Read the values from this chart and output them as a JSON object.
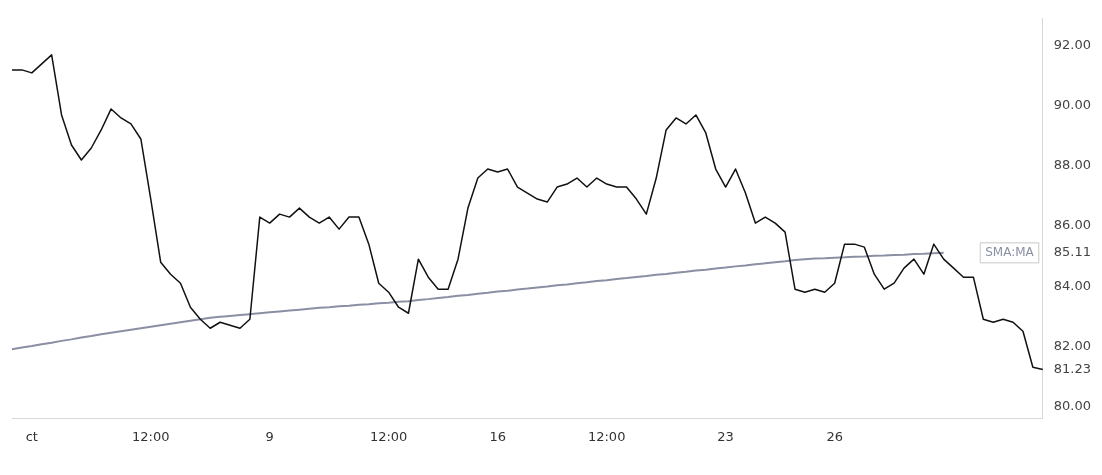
{
  "chart_data": {
    "type": "line",
    "ylim": [
      79.6,
      92.9
    ],
    "categories": [
      null,
      null,
      "ct",
      null,
      null,
      null,
      null,
      null,
      null,
      null,
      null,
      null,
      null,
      null,
      "12:00",
      null,
      null,
      null,
      null,
      null,
      null,
      null,
      null,
      null,
      null,
      null,
      "9",
      null,
      null,
      null,
      null,
      null,
      null,
      null,
      null,
      null,
      null,
      null,
      "12:00",
      null,
      null,
      null,
      null,
      null,
      null,
      null,
      null,
      null,
      null,
      "16",
      null,
      null,
      null,
      null,
      null,
      null,
      null,
      null,
      null,
      null,
      "12:00",
      null,
      null,
      null,
      null,
      null,
      null,
      null,
      null,
      null,
      null,
      null,
      "23",
      null,
      null,
      null,
      null,
      null,
      null,
      null,
      null,
      null,
      null,
      "26",
      null,
      null,
      null,
      null,
      null,
      null,
      null,
      null,
      null,
      null,
      null,
      null,
      null,
      null,
      null,
      null,
      null,
      null,
      null,
      null,
      null
    ],
    "yticks": [
      {
        "value": 80,
        "label": "80.00"
      },
      {
        "value": 81.23,
        "label": "81.23"
      },
      {
        "value": 82,
        "label": "82.00"
      },
      {
        "value": 84,
        "label": "84.00"
      },
      {
        "value": 85.11,
        "label": "85.11"
      },
      {
        "value": 86,
        "label": "86.00"
      },
      {
        "value": 88,
        "label": "88.00"
      },
      {
        "value": 90,
        "label": "90.00"
      },
      {
        "value": 92,
        "label": "92.00"
      }
    ],
    "grid": false,
    "legend": false,
    "marker": "none",
    "line_style": "solid",
    "series": [
      {
        "color": "#111111",
        "values": [
          91.2,
          91.2,
          91.1,
          91.4,
          91.7,
          89.7,
          88.7,
          88.2,
          88.6,
          89.2,
          89.9,
          89.6,
          89.4,
          88.9,
          86.9,
          84.8,
          84.4,
          84.1,
          83.3,
          82.9,
          82.6,
          82.8,
          82.7,
          82.6,
          82.9,
          86.3,
          86.1,
          86.4,
          86.3,
          86.6,
          86.3,
          86.1,
          86.3,
          85.9,
          86.3,
          86.3,
          85.4,
          84.1,
          83.8,
          83.3,
          83.1,
          84.9,
          84.3,
          83.9,
          83.9,
          84.9,
          86.6,
          87.6,
          87.9,
          87.8,
          87.9,
          87.3,
          87.1,
          86.9,
          86.8,
          87.3,
          87.4,
          87.6,
          87.3,
          87.6,
          87.4,
          87.3,
          87.3,
          86.9,
          86.4,
          87.6,
          89.2,
          89.6,
          89.4,
          89.7,
          89.1,
          87.9,
          87.3,
          87.9,
          87.1,
          86.1,
          86.3,
          86.1,
          85.8,
          83.9,
          83.8,
          83.9,
          83.8,
          84.1,
          85.4,
          85.4,
          85.3,
          84.4,
          83.9,
          84.1,
          84.6,
          84.9,
          84.4,
          85.4,
          84.9,
          84.6,
          84.3,
          84.3,
          82.9,
          82.8,
          82.9,
          82.8,
          82.5,
          81.3,
          81.23
        ]
      },
      {
        "name": "SMA:MA",
        "color": "#8a8fa3",
        "values": [
          81.9,
          81.96,
          82.01,
          82.07,
          82.12,
          82.18,
          82.23,
          82.29,
          82.34,
          82.4,
          82.45,
          82.5,
          82.55,
          82.6,
          82.65,
          82.7,
          82.75,
          82.8,
          82.85,
          82.9,
          82.95,
          82.98,
          83.01,
          83.04,
          83.07,
          83.1,
          83.13,
          83.16,
          83.19,
          83.22,
          83.25,
          83.28,
          83.3,
          83.33,
          83.35,
          83.38,
          83.4,
          83.43,
          83.45,
          83.48,
          83.5,
          83.54,
          83.57,
          83.61,
          83.64,
          83.68,
          83.71,
          83.75,
          83.78,
          83.82,
          83.85,
          83.89,
          83.92,
          83.96,
          83.99,
          84.03,
          84.06,
          84.1,
          84.13,
          84.17,
          84.2,
          84.24,
          84.27,
          84.31,
          84.34,
          84.38,
          84.41,
          84.45,
          84.48,
          84.52,
          84.55,
          84.59,
          84.62,
          84.66,
          84.69,
          84.73,
          84.76,
          84.8,
          84.83,
          84.87,
          84.9,
          84.92,
          84.93,
          84.95,
          84.96,
          84.98,
          84.99,
          85.01,
          85.02,
          85.04,
          85.05,
          85.07,
          85.08,
          85.1,
          85.11,
          null,
          null,
          null,
          null,
          null,
          null,
          null,
          null,
          null,
          null
        ]
      }
    ]
  }
}
